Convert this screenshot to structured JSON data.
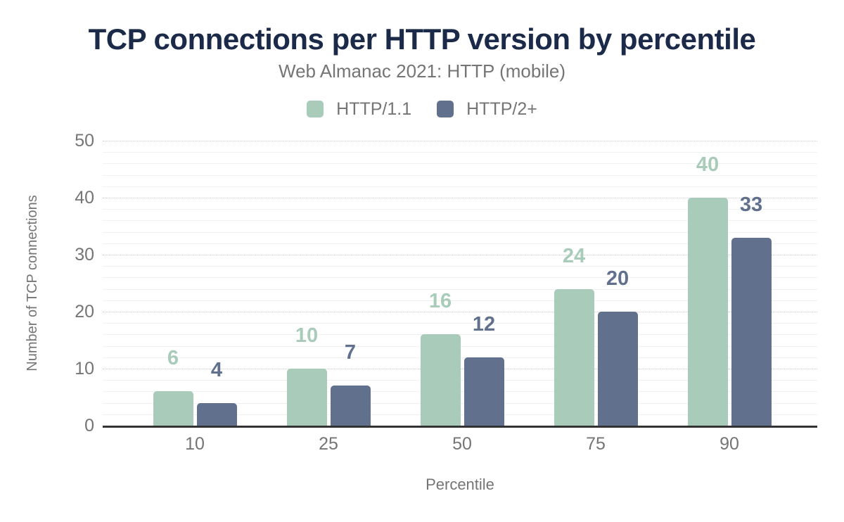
{
  "chart_data": {
    "type": "bar",
    "title": "TCP connections per HTTP version by percentile",
    "subtitle": "Web Almanac 2021: HTTP (mobile)",
    "xlabel": "Percentile",
    "ylabel": "Number of TCP connections",
    "categories": [
      "10",
      "25",
      "50",
      "75",
      "90"
    ],
    "series": [
      {
        "name": "HTTP/1.1",
        "color": "#a9cbba",
        "values": [
          6,
          10,
          16,
          24,
          40
        ]
      },
      {
        "name": "HTTP/2+",
        "color": "#60708d",
        "values": [
          4,
          7,
          12,
          20,
          33
        ]
      }
    ],
    "ylim": [
      0,
      50
    ],
    "yticks": [
      0,
      10,
      20,
      30,
      40,
      50
    ],
    "grid": {
      "major_step": 10,
      "minor_step": 2,
      "major_style": "dotted",
      "minor_style": "solid"
    },
    "legend_position": "top",
    "bar_labels": true
  },
  "colors": {
    "title": "#1b2a49",
    "text_muted": "#757575",
    "axis_line": "#333333",
    "major_grid": "#cccccc",
    "minor_grid": "#f0f0f0",
    "background": "#ffffff"
  }
}
